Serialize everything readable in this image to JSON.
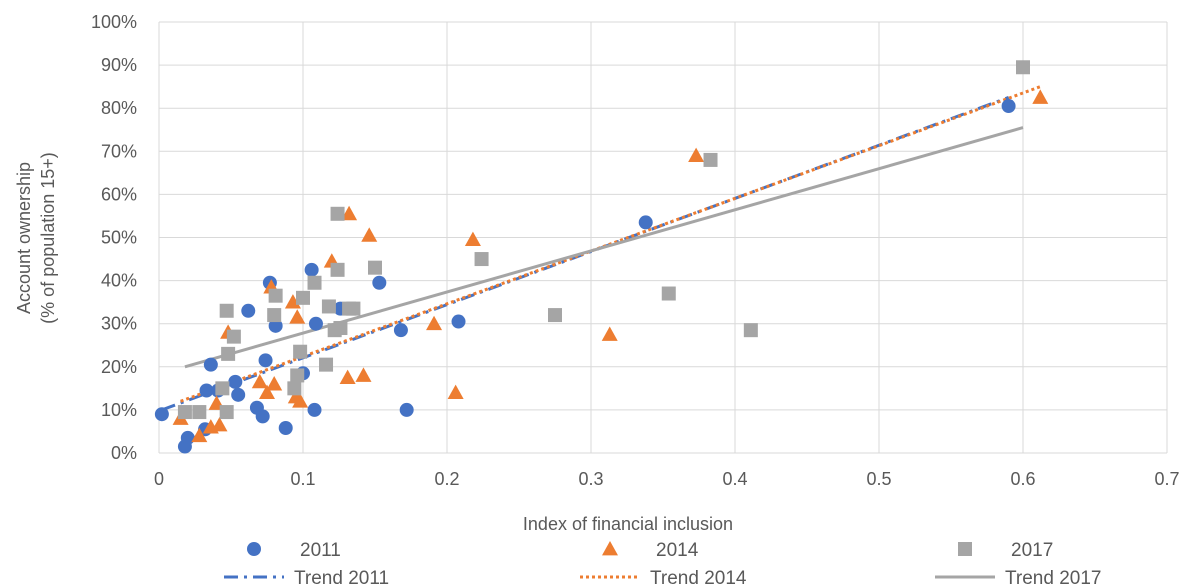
{
  "chart_data": {
    "type": "scatter",
    "title": "",
    "xlabel": "Index of financial inclusion",
    "ylabel_lines": [
      "Account ownership",
      "(% of population 15+)"
    ],
    "xlim": [
      0,
      0.7
    ],
    "ylim": [
      0,
      100
    ],
    "x_ticks": [
      0,
      0.1,
      0.2,
      0.3,
      0.4,
      0.5,
      0.6,
      0.7
    ],
    "x_tick_labels": [
      "0",
      "0.1",
      "0.2",
      "0.3",
      "0.4",
      "0.5",
      "0.6",
      "0.7"
    ],
    "y_ticks": [
      0,
      10,
      20,
      30,
      40,
      50,
      60,
      70,
      80,
      90,
      100
    ],
    "y_tick_labels": [
      "0%",
      "10%",
      "20%",
      "30%",
      "40%",
      "50%",
      "60%",
      "70%",
      "80%",
      "90%",
      "100%"
    ],
    "grid": true,
    "legend_position": "bottom",
    "series": [
      {
        "name": "2011",
        "marker": "circle",
        "color": "#4472C4",
        "points": [
          [
            0.002,
            9
          ],
          [
            0.018,
            1.5
          ],
          [
            0.02,
            3.5
          ],
          [
            0.032,
            5.5
          ],
          [
            0.033,
            14.5
          ],
          [
            0.036,
            20.5
          ],
          [
            0.041,
            14.5
          ],
          [
            0.053,
            16.5
          ],
          [
            0.055,
            13.5
          ],
          [
            0.062,
            33
          ],
          [
            0.068,
            10.5
          ],
          [
            0.072,
            8.5
          ],
          [
            0.074,
            21.5
          ],
          [
            0.077,
            39.5
          ],
          [
            0.081,
            29.5
          ],
          [
            0.088,
            5.8
          ],
          [
            0.1,
            18.5
          ],
          [
            0.106,
            42.5
          ],
          [
            0.108,
            10
          ],
          [
            0.109,
            30
          ],
          [
            0.126,
            33.5
          ],
          [
            0.153,
            39.5
          ],
          [
            0.168,
            28.5
          ],
          [
            0.172,
            10
          ],
          [
            0.208,
            30.5
          ],
          [
            0.338,
            53.5
          ],
          [
            0.59,
            80.5
          ]
        ]
      },
      {
        "name": "2014",
        "marker": "triangle",
        "color": "#ED7D31",
        "points": [
          [
            0.015,
            8
          ],
          [
            0.028,
            4
          ],
          [
            0.036,
            6
          ],
          [
            0.04,
            11.5
          ],
          [
            0.042,
            6.5
          ],
          [
            0.048,
            28
          ],
          [
            0.07,
            16.5
          ],
          [
            0.075,
            14
          ],
          [
            0.078,
            38.5
          ],
          [
            0.08,
            16
          ],
          [
            0.093,
            35
          ],
          [
            0.095,
            13
          ],
          [
            0.096,
            31.5
          ],
          [
            0.098,
            12
          ],
          [
            0.12,
            44.5
          ],
          [
            0.131,
            17.5
          ],
          [
            0.132,
            55.5
          ],
          [
            0.142,
            18
          ],
          [
            0.146,
            50.5
          ],
          [
            0.191,
            30
          ],
          [
            0.206,
            14
          ],
          [
            0.218,
            49.5
          ],
          [
            0.313,
            27.5
          ],
          [
            0.373,
            69
          ],
          [
            0.612,
            82.5
          ]
        ]
      },
      {
        "name": "2017",
        "marker": "square",
        "color": "#A5A5A5",
        "points": [
          [
            0.018,
            9.5
          ],
          [
            0.028,
            9.5
          ],
          [
            0.044,
            15
          ],
          [
            0.047,
            9.5
          ],
          [
            0.047,
            33
          ],
          [
            0.048,
            23
          ],
          [
            0.052,
            27
          ],
          [
            0.08,
            32
          ],
          [
            0.081,
            36.5
          ],
          [
            0.094,
            15
          ],
          [
            0.096,
            18
          ],
          [
            0.098,
            23.5
          ],
          [
            0.1,
            36
          ],
          [
            0.108,
            39.5
          ],
          [
            0.116,
            20.5
          ],
          [
            0.118,
            34
          ],
          [
            0.122,
            28.5
          ],
          [
            0.124,
            42.5
          ],
          [
            0.124,
            55.5
          ],
          [
            0.126,
            29
          ],
          [
            0.132,
            33.5
          ],
          [
            0.135,
            33.5
          ],
          [
            0.15,
            43
          ],
          [
            0.224,
            45
          ],
          [
            0.275,
            32
          ],
          [
            0.354,
            37
          ],
          [
            0.383,
            68
          ],
          [
            0.411,
            28.5
          ],
          [
            0.6,
            89.5
          ]
        ]
      }
    ],
    "trendlines": [
      {
        "name": "Trend 2011",
        "style": "dash-dot",
        "color": "#4472C4",
        "from": [
          0.002,
          10
        ],
        "to": [
          0.59,
          82.5
        ]
      },
      {
        "name": "Trend 2014",
        "style": "dotted",
        "color": "#ED7D31",
        "from": [
          0.015,
          12
        ],
        "to": [
          0.612,
          85
        ]
      },
      {
        "name": "Trend 2017",
        "style": "solid",
        "color": "#A5A5A5",
        "from": [
          0.018,
          20
        ],
        "to": [
          0.6,
          75.5
        ]
      }
    ]
  }
}
